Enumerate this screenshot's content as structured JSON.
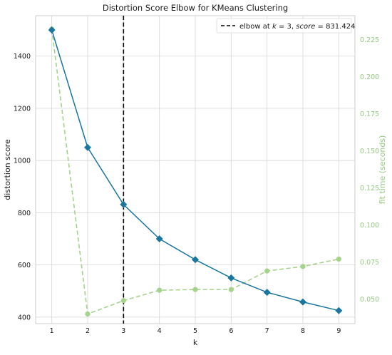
{
  "chart_data": {
    "type": "line",
    "title": "Distortion Score Elbow for KMeans Clustering",
    "xlabel": "k",
    "ylabel": "distortion score",
    "ylabel_right": "fit time (seconds)",
    "x": [
      1,
      2,
      3,
      4,
      5,
      6,
      7,
      8,
      9
    ],
    "xlim": [
      0.55,
      9.45
    ],
    "ylim": [
      375,
      1555
    ],
    "ylim_right": [
      0.0335,
      0.241
    ],
    "xticks": [
      "1",
      "2",
      "3",
      "4",
      "5",
      "6",
      "7",
      "8",
      "9"
    ],
    "yticks": [
      "400",
      "600",
      "800",
      "1000",
      "1200",
      "1400"
    ],
    "yticks_right": [
      "0.050",
      "0.075",
      "0.100",
      "0.125",
      "0.150",
      "0.175",
      "0.200",
      "0.225"
    ],
    "grid": true,
    "series": [
      {
        "axis": "left",
        "color": "#1a75a0",
        "style": "solid",
        "marker": "diamond",
        "values": [
          1500,
          1050,
          831.424,
          700,
          620,
          550,
          495,
          458,
          425
        ]
      },
      {
        "axis": "right",
        "color": "#a5d38c",
        "style": "dashed",
        "marker": "circle",
        "values": [
          0.232,
          0.04,
          0.049,
          0.056,
          0.0565,
          0.0565,
          0.069,
          0.072,
          0.077
        ]
      }
    ],
    "elbow": {
      "k": 3,
      "legend_prefix": "elbow at ",
      "legend_k": "k",
      "legend_mid": " = 3, ",
      "legend_score": "score",
      "legend_value": " = 831.424"
    },
    "legend_position": "top-right"
  }
}
